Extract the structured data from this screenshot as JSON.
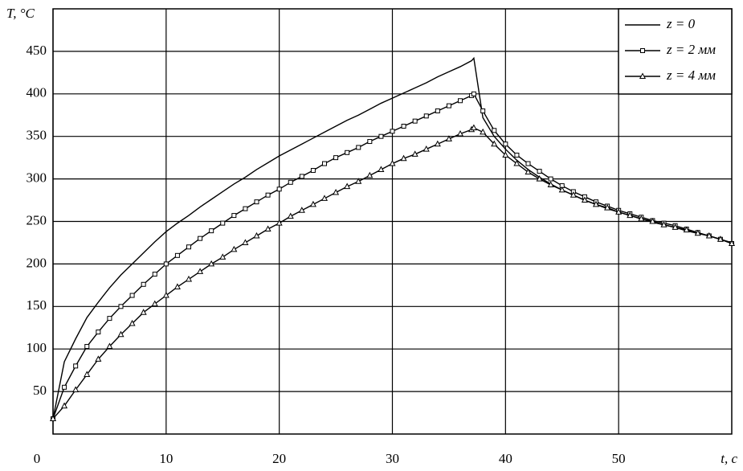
{
  "chart_data": {
    "type": "line",
    "x_label": "t, c",
    "y_label": "T, °C",
    "x": [
      0,
      1,
      2,
      3,
      4,
      5,
      6,
      7,
      8,
      9,
      10,
      11,
      12,
      13,
      14,
      15,
      16,
      17,
      18,
      19,
      20,
      21,
      22,
      23,
      24,
      25,
      26,
      27,
      28,
      29,
      30,
      31,
      32,
      33,
      34,
      35,
      36,
      37,
      37.2,
      38,
      39,
      40,
      41,
      42,
      43,
      44,
      45,
      46,
      47,
      48,
      49,
      50,
      51,
      52,
      53,
      54,
      55,
      56,
      57,
      58,
      59,
      60
    ],
    "series": [
      {
        "name": "z = 0",
        "color": "#000000",
        "marker": "none",
        "values": [
          18,
          85,
          112,
          137,
          155,
          172,
          187,
          200,
          213,
          226,
          238,
          248,
          257,
          267,
          276,
          285,
          294,
          302,
          311,
          319,
          327,
          334,
          341,
          348,
          355,
          362,
          369,
          375,
          382,
          389,
          395,
          401,
          407,
          413,
          420,
          426,
          432,
          439,
          442,
          372,
          350,
          335,
          322,
          311,
          302,
          294,
          287,
          281,
          275,
          270,
          265,
          261,
          257,
          253,
          249,
          246,
          243,
          239,
          236,
          233,
          229,
          225
        ]
      },
      {
        "name": "z = 2 мм",
        "color": "#000000",
        "marker": "square",
        "values": [
          18,
          55,
          80,
          103,
          120,
          136,
          150,
          163,
          176,
          188,
          200,
          210,
          220,
          230,
          239,
          248,
          257,
          265,
          273,
          281,
          288,
          296,
          303,
          310,
          318,
          325,
          331,
          337,
          344,
          350,
          356,
          362,
          368,
          374,
          380,
          386,
          392,
          398,
          400,
          380,
          357,
          341,
          328,
          318,
          309,
          300,
          292,
          285,
          279,
          273,
          268,
          263,
          259,
          255,
          251,
          248,
          245,
          241,
          237,
          233,
          229,
          224
        ]
      },
      {
        "name": "z = 4 мм",
        "color": "#000000",
        "marker": "triangle",
        "values": [
          18,
          33,
          52,
          70,
          88,
          103,
          117,
          130,
          143,
          153,
          163,
          173,
          182,
          191,
          200,
          208,
          217,
          225,
          233,
          241,
          248,
          256,
          263,
          270,
          277,
          284,
          291,
          297,
          304,
          311,
          318,
          324,
          329,
          335,
          341,
          347,
          353,
          358,
          360,
          355,
          341,
          328,
          318,
          308,
          300,
          293,
          287,
          281,
          275,
          270,
          266,
          261,
          257,
          253,
          250,
          246,
          243,
          240,
          236,
          233,
          229,
          224
        ]
      }
    ],
    "xlim": [
      0,
      60
    ],
    "ylim": [
      0,
      500
    ],
    "xticks": [
      0,
      10,
      20,
      30,
      40,
      50
    ],
    "yticks": [
      50,
      100,
      150,
      200,
      250,
      300,
      350,
      400,
      450
    ],
    "grid": true,
    "legend": "upper right"
  }
}
